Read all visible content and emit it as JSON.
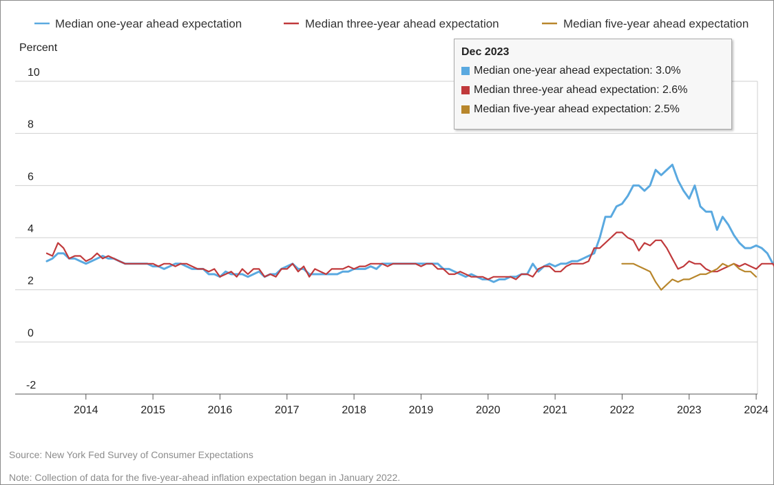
{
  "chart_data": {
    "type": "line",
    "ylabel": "Percent",
    "ylim": [
      -2,
      10
    ],
    "yticks": [
      "10",
      "8",
      "6",
      "4",
      "2",
      "0",
      "-2"
    ],
    "ytick_values": [
      10,
      8,
      6,
      4,
      2,
      0,
      -2
    ],
    "xlim": [
      "2013-06",
      "2023-12"
    ],
    "xticks": [
      {
        "label": "2014",
        "date": "2014-01"
      },
      {
        "label": "2015",
        "date": "2015-01"
      },
      {
        "label": "2016",
        "date": "2016-01"
      },
      {
        "label": "2017",
        "date": "2017-01"
      },
      {
        "label": "2018",
        "date": "2018-01"
      },
      {
        "label": "2019",
        "date": "2019-01"
      },
      {
        "label": "2020",
        "date": "2020-01"
      },
      {
        "label": "2021",
        "date": "2021-01"
      },
      {
        "label": "2022",
        "date": "2022-01"
      },
      {
        "label": "2023",
        "date": "2023-01"
      },
      {
        "label": "2024",
        "date": "2024-01"
      }
    ],
    "grid": true,
    "legend_position": "top",
    "series": [
      {
        "name": "Median one-year ahead expectation",
        "color": "#5aa9e0",
        "start": "2013-06",
        "values": [
          3.1,
          3.2,
          3.4,
          3.4,
          3.2,
          3.2,
          3.1,
          3.0,
          3.1,
          3.2,
          3.3,
          3.2,
          3.2,
          3.1,
          3.0,
          3.0,
          3.0,
          3.0,
          3.0,
          2.9,
          2.9,
          2.8,
          2.9,
          3.0,
          3.0,
          2.9,
          2.8,
          2.8,
          2.8,
          2.6,
          2.6,
          2.5,
          2.7,
          2.6,
          2.6,
          2.6,
          2.5,
          2.6,
          2.7,
          2.5,
          2.6,
          2.6,
          2.8,
          2.9,
          3.0,
          2.8,
          2.8,
          2.6,
          2.6,
          2.6,
          2.6,
          2.6,
          2.6,
          2.7,
          2.7,
          2.8,
          2.8,
          2.8,
          2.9,
          2.8,
          3.0,
          3.0,
          3.0,
          3.0,
          3.0,
          3.0,
          3.0,
          3.0,
          3.0,
          3.0,
          3.0,
          2.8,
          2.8,
          2.7,
          2.6,
          2.5,
          2.6,
          2.5,
          2.4,
          2.4,
          2.3,
          2.4,
          2.4,
          2.5,
          2.5,
          2.6,
          2.6,
          3.0,
          2.7,
          2.9,
          3.0,
          2.9,
          3.0,
          3.0,
          3.1,
          3.1,
          3.2,
          3.3,
          3.4,
          4.0,
          4.8,
          4.8,
          5.2,
          5.3,
          5.6,
          6.0,
          6.0,
          5.8,
          6.0,
          6.6,
          6.4,
          6.6,
          6.8,
          6.2,
          5.8,
          5.5,
          6.0,
          5.2,
          5.0,
          5.0,
          4.3,
          4.8,
          4.5,
          4.1,
          3.8,
          3.6,
          3.6,
          3.7,
          3.6,
          3.4,
          3.0
        ]
      },
      {
        "name": "Median three-year ahead expectation",
        "color": "#c0393b",
        "start": "2013-06",
        "values": [
          3.4,
          3.3,
          3.8,
          3.6,
          3.2,
          3.3,
          3.3,
          3.1,
          3.2,
          3.4,
          3.2,
          3.3,
          3.2,
          3.1,
          3.0,
          3.0,
          3.0,
          3.0,
          3.0,
          3.0,
          2.9,
          3.0,
          3.0,
          2.9,
          3.0,
          3.0,
          2.9,
          2.8,
          2.8,
          2.7,
          2.8,
          2.5,
          2.6,
          2.7,
          2.5,
          2.8,
          2.6,
          2.8,
          2.8,
          2.5,
          2.6,
          2.5,
          2.8,
          2.8,
          3.0,
          2.7,
          2.9,
          2.5,
          2.8,
          2.7,
          2.6,
          2.8,
          2.8,
          2.8,
          2.9,
          2.8,
          2.9,
          2.9,
          3.0,
          3.0,
          3.0,
          2.9,
          3.0,
          3.0,
          3.0,
          3.0,
          3.0,
          2.9,
          3.0,
          3.0,
          2.8,
          2.8,
          2.6,
          2.6,
          2.7,
          2.6,
          2.5,
          2.5,
          2.5,
          2.4,
          2.5,
          2.5,
          2.5,
          2.5,
          2.4,
          2.6,
          2.6,
          2.5,
          2.8,
          2.9,
          2.9,
          2.7,
          2.7,
          2.9,
          3.0,
          3.0,
          3.0,
          3.1,
          3.6,
          3.6,
          3.8,
          4.0,
          4.2,
          4.2,
          4.0,
          3.9,
          3.5,
          3.8,
          3.7,
          3.9,
          3.9,
          3.6,
          3.2,
          2.8,
          2.9,
          3.1,
          3.0,
          3.0,
          2.8,
          2.7,
          2.7,
          2.8,
          2.9,
          3.0,
          2.9,
          3.0,
          2.9,
          2.8,
          3.0,
          3.0,
          3.0,
          2.6
        ]
      },
      {
        "name": "Median five-year ahead expectation",
        "color": "#b8862b",
        "start": "2022-01",
        "values": [
          3.0,
          3.0,
          3.0,
          2.9,
          2.8,
          2.7,
          2.3,
          2.0,
          2.2,
          2.4,
          2.3,
          2.4,
          2.4,
          2.5,
          2.6,
          2.6,
          2.7,
          2.8,
          3.0,
          2.9,
          3.0,
          2.8,
          2.7,
          2.7,
          2.5
        ]
      }
    ]
  },
  "tooltip": {
    "title": "Dec 2023",
    "rows": [
      {
        "text": "Median one-year ahead expectation: 3.0%",
        "color": "#5aa9e0"
      },
      {
        "text": "Median three-year ahead expectation: 2.6%",
        "color": "#c0393b"
      },
      {
        "text": "Median five-year ahead expectation: 2.5%",
        "color": "#b8862b"
      }
    ]
  },
  "footer": {
    "source": "Source: New York Fed Survey of Consumer Expectations",
    "note": "Note: Collection of data for the five-year-ahead inflation expectation began in January 2022."
  }
}
